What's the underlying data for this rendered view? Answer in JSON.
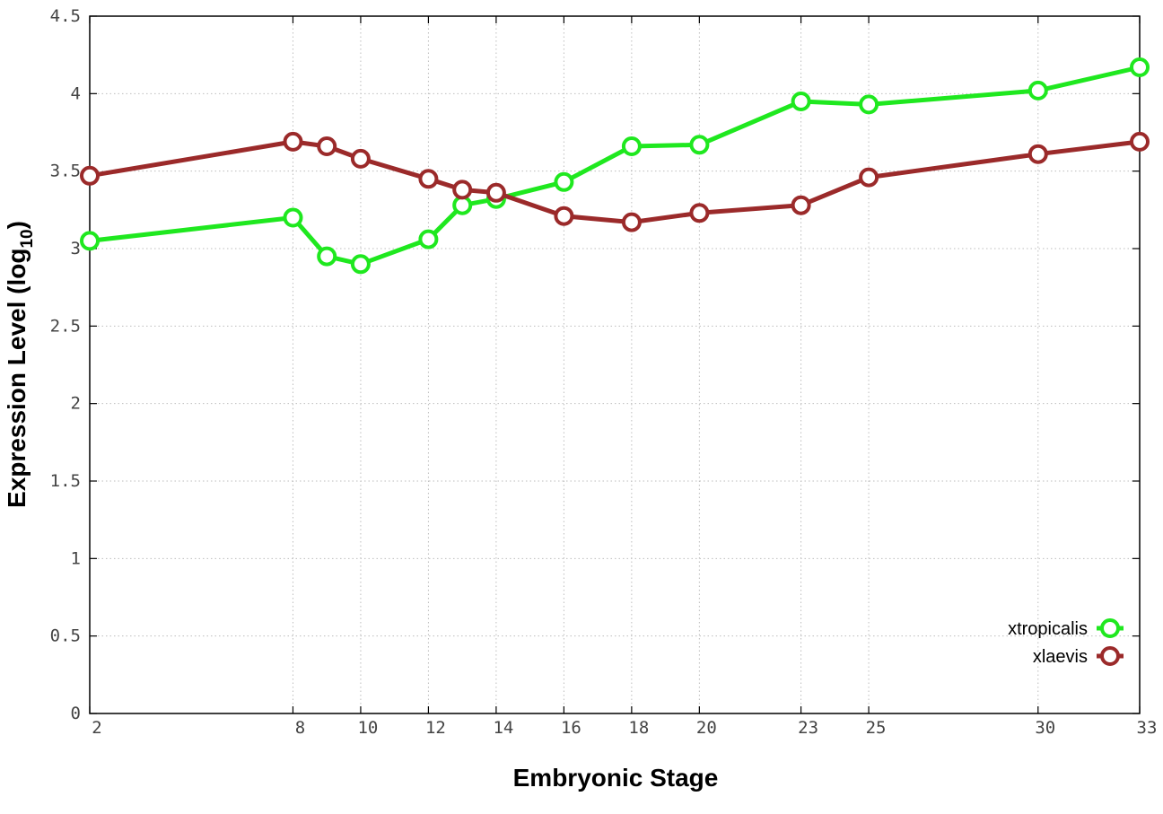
{
  "chart_data": {
    "type": "line",
    "xlabel": "Embryonic Stage",
    "ylabel": {
      "main": "Expression Level (log",
      "sub": "10",
      "tail": ")"
    },
    "categories": [
      "2",
      "8",
      "9",
      "10",
      "12",
      "13",
      "14",
      "16",
      "18",
      "20",
      "23",
      "25",
      "30",
      "33"
    ],
    "x_tick_labels": [
      "2",
      "8",
      "10",
      "12",
      "14",
      "16",
      "18",
      "20",
      "23",
      "25",
      "30",
      "33"
    ],
    "y_ticks": [
      "0",
      "0.5",
      "1",
      "1.5",
      "2",
      "2.5",
      "3",
      "3.5",
      "4",
      "4.5"
    ],
    "ylim": [
      0,
      4.5
    ],
    "grid": true,
    "legend_position": "bottom-right",
    "series": [
      {
        "name": "xtropicalis",
        "color": "#1fe81f",
        "values": [
          3.05,
          3.2,
          2.95,
          2.9,
          3.06,
          3.28,
          3.32,
          3.43,
          3.66,
          3.67,
          3.95,
          3.93,
          4.02,
          4.17
        ]
      },
      {
        "name": "xlaevis",
        "color": "#9b2a2a",
        "values": [
          3.47,
          3.69,
          3.66,
          3.58,
          3.45,
          3.38,
          3.36,
          3.21,
          3.17,
          3.23,
          3.28,
          3.46,
          3.61,
          3.69
        ]
      }
    ]
  }
}
